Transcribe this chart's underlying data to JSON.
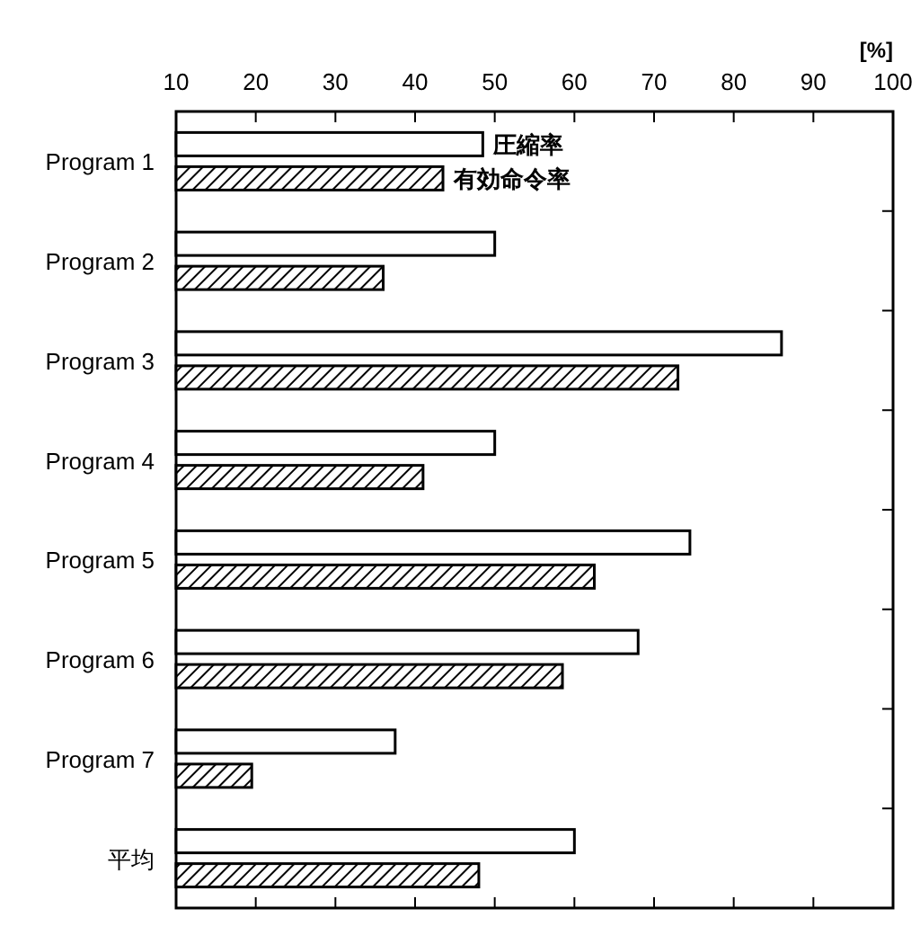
{
  "chart_data": {
    "type": "bar",
    "orientation": "horizontal",
    "xlabel": "[%]",
    "categories": [
      "Program 1",
      "Program 2",
      "Program 3",
      "Program 4",
      "Program 5",
      "Program 6",
      "Program 7",
      "平均"
    ],
    "series": [
      {
        "name": "圧縮率",
        "color": "#ffffff",
        "values": [
          48.5,
          50,
          86,
          50,
          74.5,
          68,
          37.5,
          60
        ]
      },
      {
        "name": "有効命令率",
        "color": "#000000",
        "values": [
          43.5,
          36,
          73,
          41,
          62.5,
          58.5,
          19.5,
          48
        ]
      }
    ],
    "xlim": [
      10,
      100
    ],
    "xticks": [
      10,
      20,
      30,
      40,
      50,
      60,
      70,
      80,
      90,
      100
    ],
    "grid": false,
    "legend": false
  }
}
